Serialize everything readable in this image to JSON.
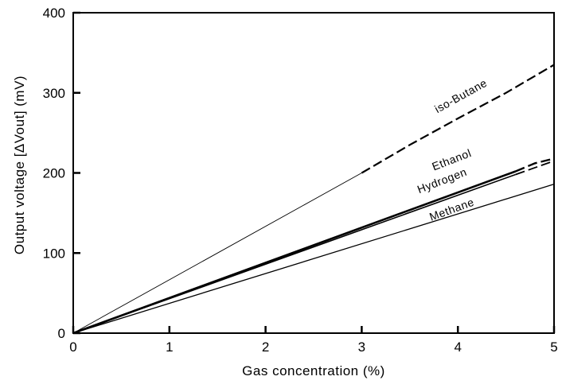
{
  "chart_data": {
    "type": "line",
    "title": "",
    "xlabel": "Gas concentration (%)",
    "ylabel": "Output voltage [ΔVout] (mV)",
    "xlim": [
      0,
      5
    ],
    "ylim": [
      0,
      400
    ],
    "xticks": [
      "0",
      "1",
      "2",
      "3",
      "4",
      "5"
    ],
    "yticks": [
      "0",
      "100",
      "200",
      "300",
      "400"
    ],
    "grid": false,
    "legend": "none",
    "series": [
      {
        "name": "iso-Butane",
        "color": "#000000",
        "solid_points": [
          [
            0,
            0
          ],
          [
            3,
            200
          ]
        ],
        "dashed_points": [
          [
            3,
            200
          ],
          [
            3.5,
            235
          ],
          [
            4,
            268
          ],
          [
            4.5,
            300
          ],
          [
            5,
            335
          ]
        ]
      },
      {
        "name": "Ethanol",
        "color": "#000000",
        "solid_points": [
          [
            0,
            0
          ],
          [
            4.6,
            202
          ]
        ],
        "dashed_points": [
          [
            4.6,
            202
          ],
          [
            4.8,
            212
          ],
          [
            5,
            218
          ]
        ]
      },
      {
        "name": "Hydrogen",
        "color": "#000000",
        "solid_points": [
          [
            0,
            0
          ],
          [
            4.6,
            198
          ]
        ],
        "dashed_points": [
          [
            4.6,
            198
          ],
          [
            5,
            215
          ]
        ]
      },
      {
        "name": "Methane",
        "color": "#000000",
        "solid_points": [
          [
            0,
            0
          ],
          [
            5,
            186
          ]
        ],
        "dashed_points": []
      }
    ]
  }
}
